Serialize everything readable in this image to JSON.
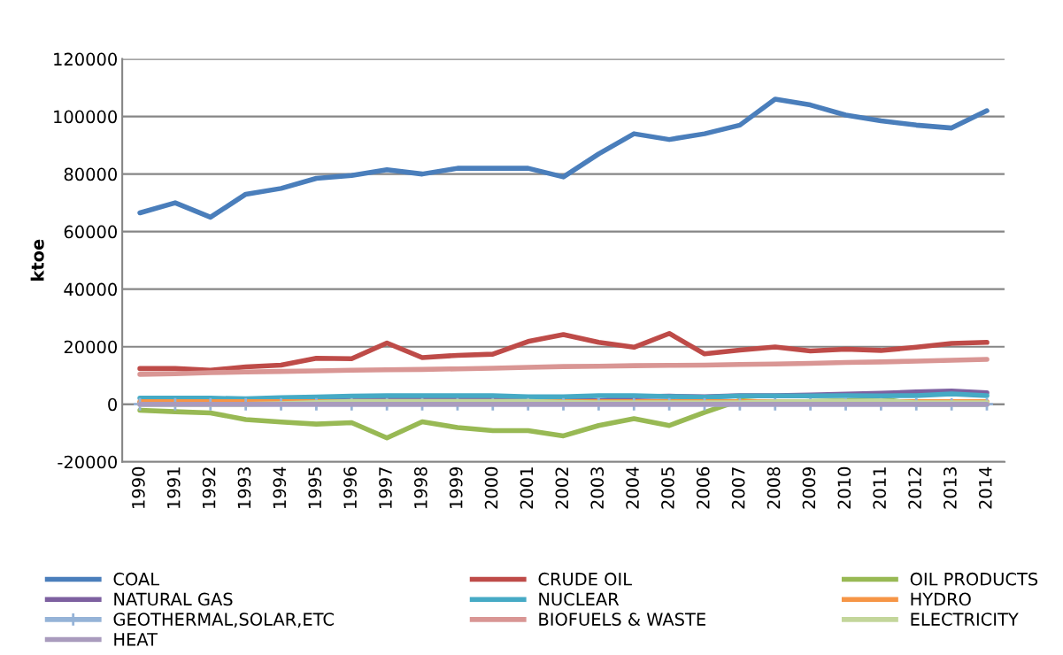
{
  "chart_data": {
    "type": "line",
    "ylabel": "ktoe",
    "categories": [
      "1990",
      "1991",
      "1992",
      "1993",
      "1994",
      "1995",
      "1996",
      "1997",
      "1998",
      "1999",
      "2000",
      "2001",
      "2002",
      "2003",
      "2004",
      "2005",
      "2006",
      "2007",
      "2008",
      "2009",
      "2010",
      "2011",
      "2012",
      "2013",
      "2014"
    ],
    "ylim": [
      -20000,
      120000
    ],
    "yticks": [
      -20000,
      0,
      20000,
      40000,
      60000,
      80000,
      100000,
      120000
    ],
    "grid": "y",
    "legend": "bottom",
    "marker": "none",
    "line_style": "solid",
    "series": [
      {
        "name": "COAL",
        "color": "#4a7ebb",
        "values": [
          66500,
          70000,
          65000,
          73000,
          75000,
          78500,
          79500,
          81500,
          80000,
          82000,
          82000,
          82000,
          79000,
          87000,
          94000,
          92000,
          94000,
          97000,
          106000,
          104000,
          100500,
          98500,
          97000,
          96000,
          102000
        ]
      },
      {
        "name": "CRUDE OIL",
        "color": "#be4b48",
        "values": [
          12400,
          12400,
          11800,
          13000,
          13600,
          16000,
          15800,
          21300,
          16200,
          17000,
          17400,
          21800,
          24200,
          21500,
          19800,
          24600,
          17500,
          18800,
          19900,
          18500,
          19100,
          18700,
          19800,
          21100,
          21500
        ]
      },
      {
        "name": "OIL PRODUCTS",
        "color": "#98b954",
        "values": [
          -2100,
          -2600,
          -3000,
          -5300,
          -6200,
          -6900,
          -6400,
          -11700,
          -6100,
          -8100,
          -9200,
          -9200,
          -11000,
          -7400,
          -5000,
          -7400,
          -2800,
          1300,
          500,
          1000,
          1200,
          1800,
          0,
          0,
          0
        ]
      },
      {
        "name": "NATURAL GAS",
        "color": "#7d60a0",
        "values": [
          500,
          500,
          500,
          600,
          800,
          1000,
          1500,
          1800,
          1800,
          1800,
          1800,
          1800,
          1800,
          1100,
          2600,
          2800,
          2600,
          3000,
          3000,
          3200,
          3500,
          3800,
          4300,
          4600,
          4000
        ]
      },
      {
        "name": "NUCLEAR",
        "color": "#46aac5",
        "values": [
          2100,
          2100,
          2100,
          1900,
          2300,
          2500,
          2800,
          3000,
          3000,
          3000,
          3000,
          2600,
          2600,
          3000,
          3000,
          2700,
          2400,
          2900,
          2900,
          2900,
          3000,
          2900,
          3000,
          3600,
          3000
        ]
      },
      {
        "name": "HYDRO",
        "color": "#f69546",
        "values": [
          900,
          900,
          900,
          900,
          900,
          900,
          900,
          900,
          900,
          900,
          900,
          900,
          900,
          900,
          900,
          900,
          900,
          900,
          900,
          900,
          900,
          900,
          900,
          900,
          900
        ]
      },
      {
        "name": "GEOTHERMAL,SOLAR,ETC",
        "color": "#95b3d7",
        "marker": "cross",
        "values": [
          0,
          0,
          0,
          0,
          0,
          0,
          0,
          0,
          0,
          0,
          0,
          0,
          0,
          0,
          0,
          0,
          0,
          0,
          0,
          0,
          0,
          0,
          0,
          0,
          0
        ]
      },
      {
        "name": "BIOFUELS & WASTE",
        "color": "#d99694",
        "values": [
          10400,
          10600,
          11000,
          11200,
          11400,
          11600,
          11800,
          12000,
          12100,
          12300,
          12500,
          12800,
          13100,
          13200,
          13400,
          13500,
          13600,
          13800,
          14000,
          14200,
          14500,
          14700,
          15000,
          15300,
          15600
        ]
      },
      {
        "name": "ELECTRICITY",
        "color": "#c3d69b",
        "values": [
          0,
          0,
          0,
          0,
          200,
          600,
          1000,
          1000,
          1000,
          1000,
          1000,
          1000,
          700,
          500,
          500,
          500,
          500,
          500,
          800,
          900,
          1000,
          1200,
          500,
          500,
          500
        ]
      },
      {
        "name": "HEAT",
        "color": "#a99bbd",
        "values": [
          0,
          0,
          0,
          0,
          0,
          0,
          0,
          0,
          0,
          0,
          0,
          0,
          0,
          0,
          0,
          0,
          0,
          0,
          0,
          0,
          0,
          0,
          0,
          0,
          0
        ]
      }
    ]
  }
}
